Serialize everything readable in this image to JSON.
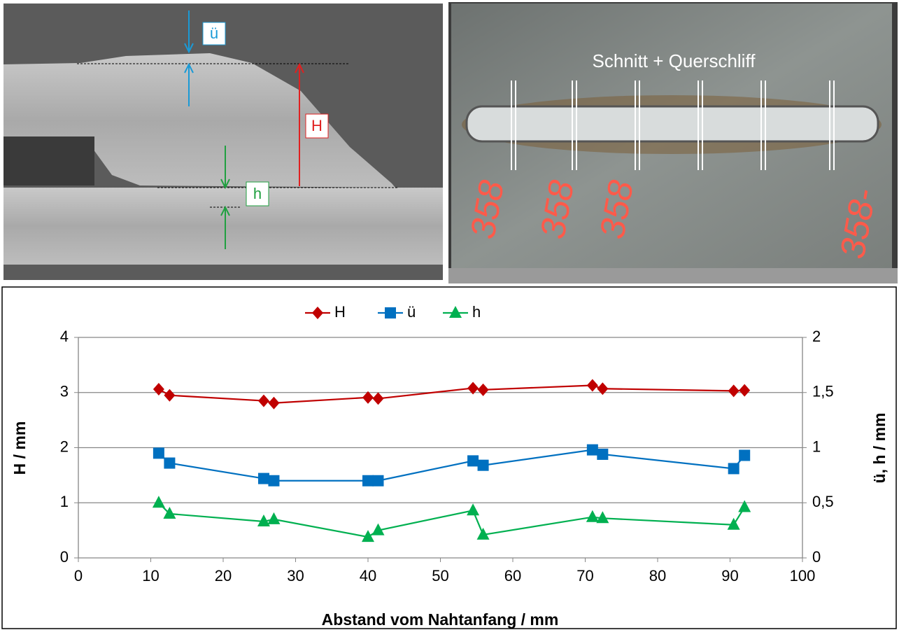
{
  "photos": {
    "cross_section": {
      "labels": [
        "ü",
        "H",
        "h"
      ]
    },
    "weld_plate": {
      "caption": "Schnitt + Querschliff",
      "markings": [
        "358",
        "358",
        "358",
        "358-"
      ]
    }
  },
  "chart_data": {
    "type": "line",
    "xlabel": "Abstand vom Nahtanfang / mm",
    "ylabel": "H / mm",
    "y2label": "ü, h / mm",
    "xlim": [
      0,
      100
    ],
    "xticks": [
      0,
      10,
      20,
      30,
      40,
      50,
      60,
      70,
      80,
      90,
      100
    ],
    "ylim": [
      0,
      4
    ],
    "yticks": [
      0,
      1,
      2,
      3,
      4
    ],
    "y2lim": [
      0,
      2
    ],
    "y2ticks": [
      0,
      {
        "value": 0.5,
        "label": "0,5"
      },
      1,
      {
        "value": 1.5,
        "label": "1,5"
      },
      2
    ],
    "grid": true,
    "legend": "top",
    "x": [
      11.1,
      12.6,
      25.6,
      27.0,
      40.0,
      41.4,
      54.5,
      55.9,
      71.0,
      72.4,
      90.5,
      92.0
    ],
    "series": [
      {
        "name": "H",
        "color": "#c00000",
        "marker": "diamond",
        "values": [
          3.06,
          2.95,
          2.85,
          2.81,
          2.91,
          2.89,
          3.08,
          3.05,
          3.13,
          3.07,
          3.03,
          3.04
        ]
      },
      {
        "name": "ü",
        "color": "#0070c0",
        "marker": "square",
        "axis": "y2",
        "values": [
          0.95,
          0.86,
          0.72,
          0.7,
          0.7,
          0.7,
          0.88,
          0.84,
          0.98,
          0.94,
          0.81,
          0.93
        ]
      },
      {
        "name": "h",
        "color": "#00b050",
        "marker": "triangle",
        "axis": "y2",
        "values": [
          0.5,
          0.4,
          0.33,
          0.35,
          0.19,
          0.25,
          0.43,
          0.21,
          0.37,
          0.36,
          0.3,
          0.46
        ]
      }
    ]
  }
}
